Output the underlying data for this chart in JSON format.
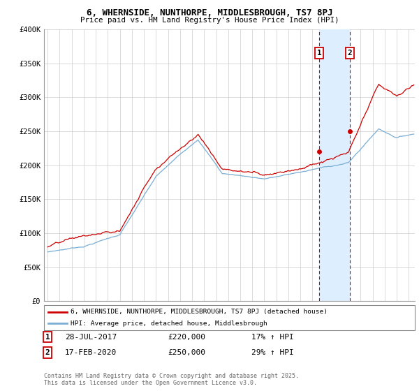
{
  "title": "6, WHERNSIDE, NUNTHORPE, MIDDLESBROUGH, TS7 8PJ",
  "subtitle": "Price paid vs. HM Land Registry's House Price Index (HPI)",
  "ylim": [
    0,
    400000
  ],
  "yticks": [
    0,
    50000,
    100000,
    150000,
    200000,
    250000,
    300000,
    350000,
    400000
  ],
  "ytick_labels": [
    "£0",
    "£50K",
    "£100K",
    "£150K",
    "£200K",
    "£250K",
    "£300K",
    "£350K",
    "£400K"
  ],
  "xlim_start": 1994.7,
  "xlim_end": 2025.5,
  "xticks": [
    1995,
    1996,
    1997,
    1998,
    1999,
    2000,
    2001,
    2002,
    2003,
    2004,
    2005,
    2006,
    2007,
    2008,
    2009,
    2010,
    2011,
    2012,
    2013,
    2014,
    2015,
    2016,
    2017,
    2018,
    2019,
    2020,
    2021,
    2022,
    2023,
    2024,
    2025
  ],
  "red_color": "#cc0000",
  "blue_color": "#7aaed4",
  "shade_color": "#ddeeff",
  "legend_label_red": "6, WHERNSIDE, NUNTHORPE, MIDDLESBROUGH, TS7 8PJ (detached house)",
  "legend_label_blue": "HPI: Average price, detached house, Middlesbrough",
  "purchase1_date": 2017.57,
  "purchase1_price": 220000,
  "purchase1_label": "28-JUL-2017",
  "purchase1_amount": "£220,000",
  "purchase1_hpi": "17% ↑ HPI",
  "purchase1_num": "1",
  "purchase2_date": 2020.12,
  "purchase2_price": 250000,
  "purchase2_label": "17-FEB-2020",
  "purchase2_amount": "£250,000",
  "purchase2_hpi": "29% ↑ HPI",
  "purchase2_num": "2",
  "footnote": "Contains HM Land Registry data © Crown copyright and database right 2025.\nThis data is licensed under the Open Government Licence v3.0.",
  "background_color": "#ffffff",
  "grid_color": "#cccccc"
}
